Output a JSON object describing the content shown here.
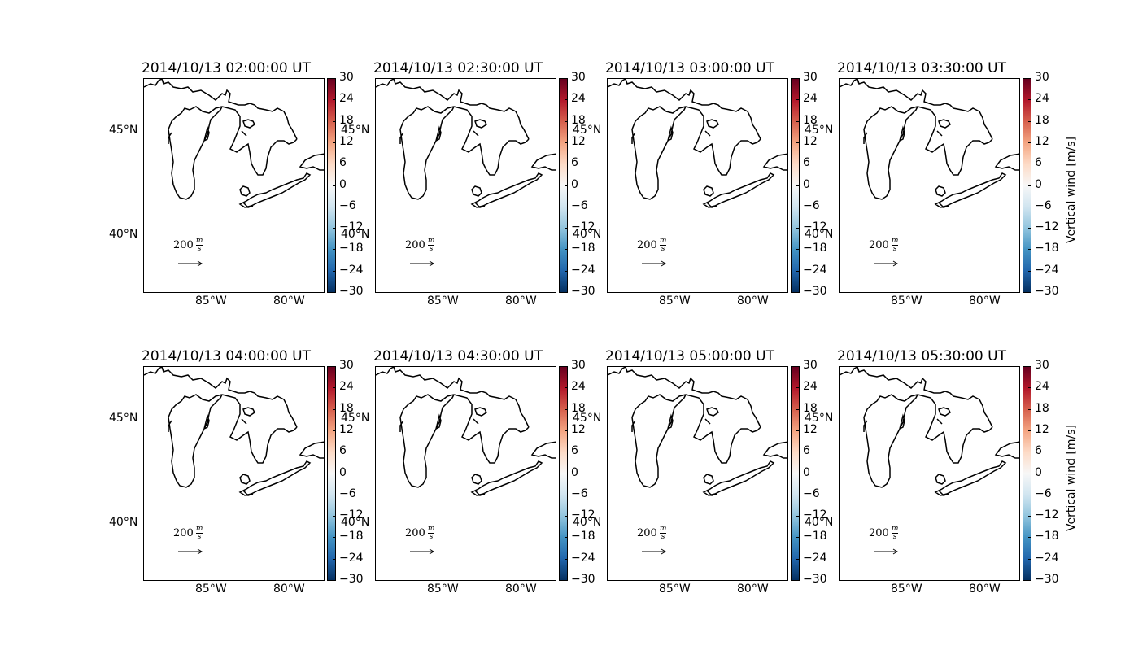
{
  "figure": {
    "colorbar": {
      "ticks": [
        "30",
        "24",
        "18",
        "12",
        "6",
        "0",
        "−6",
        "−12",
        "−18",
        "−24",
        "−30"
      ],
      "label": "Vertical wind [m/s]",
      "range": [
        -30,
        30
      ],
      "colormap": "RdBu_r",
      "colors": [
        "#053061",
        "#2166ac",
        "#4393c3",
        "#92c5de",
        "#d1e5f0",
        "#f7f7f7",
        "#fddbc7",
        "#f4a582",
        "#d6604d",
        "#b2182b",
        "#67001f"
      ]
    },
    "lat_labels": [
      "45°N",
      "40°N"
    ],
    "lon_labels": [
      "85°W",
      "80°W"
    ],
    "quiver_key": {
      "value": "200",
      "units_num": "m",
      "units_den": "s"
    },
    "coastline_color": "#000000",
    "panels": [
      {
        "title": "2014/10/13 02:00:00 UT"
      },
      {
        "title": "2014/10/13 02:30:00 UT"
      },
      {
        "title": "2014/10/13 03:00:00 UT"
      },
      {
        "title": "2014/10/13 03:30:00 UT"
      },
      {
        "title": "2014/10/13 04:00:00 UT"
      },
      {
        "title": "2014/10/13 04:30:00 UT"
      },
      {
        "title": "2014/10/13 05:00:00 UT"
      },
      {
        "title": "2014/10/13 05:30:00 UT"
      }
    ]
  }
}
